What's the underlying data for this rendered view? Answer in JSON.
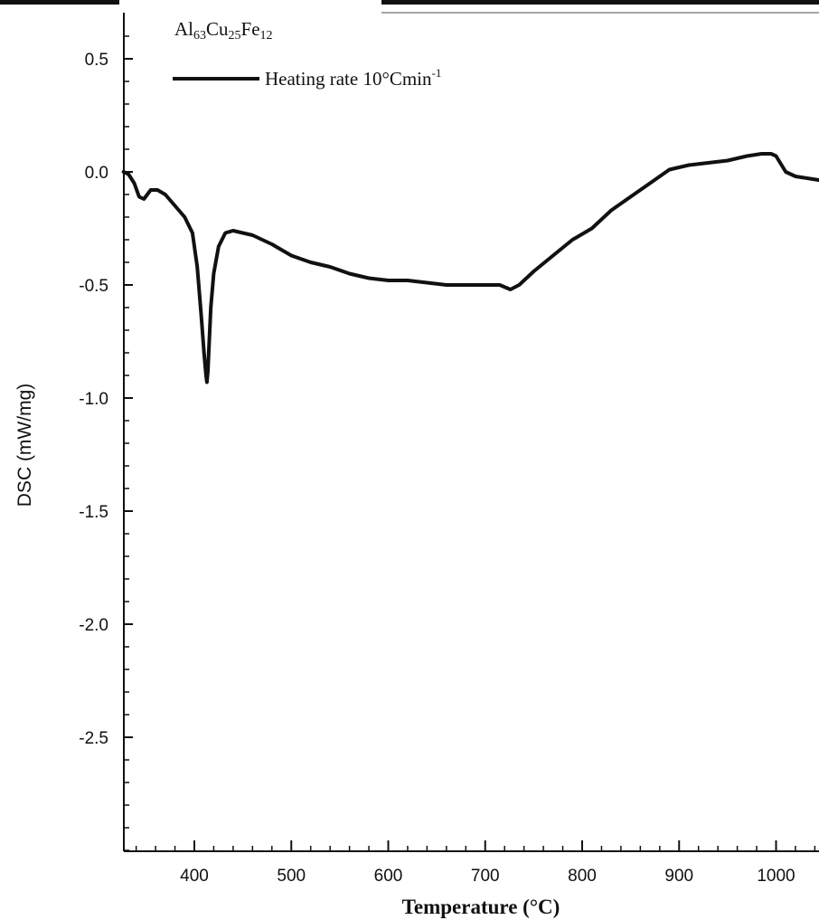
{
  "chart_data": {
    "type": "line",
    "title": "Al63Cu25Fe12",
    "title_parts": {
      "el1": "Al",
      "n1": "63",
      "el2": "Cu",
      "n2": "25",
      "el3": "Fe",
      "n3": "12"
    },
    "xlabel": "Temperature (°C)",
    "ylabel": "DSC (mW/mg)",
    "xlim": [
      325,
      1050
    ],
    "ylim": [
      -3.0,
      0.7
    ],
    "x_ticks": [
      400,
      500,
      600,
      700,
      800,
      900,
      1000
    ],
    "y_ticks": [
      0.5,
      0.0,
      -0.5,
      -1.0,
      -1.5,
      -2.0,
      -2.5
    ],
    "x_tick_labels": [
      "400",
      "500",
      "600",
      "700",
      "800",
      "900",
      "1000"
    ],
    "y_tick_labels": [
      "0.5",
      "0.0",
      "-0.5",
      "-1.0",
      "-1.5",
      "-2.0",
      "-2.5"
    ],
    "grid": false,
    "legend_placement": "top-left",
    "series": [
      {
        "name": "Heating rate 10°Cmin",
        "name_superscript": "-1",
        "color": "#111111",
        "x": [
          327,
          332,
          338,
          343,
          348,
          355,
          362,
          370,
          380,
          390,
          398,
          403,
          407,
          410,
          412,
          413,
          414,
          415,
          417,
          420,
          425,
          432,
          440,
          460,
          480,
          500,
          520,
          540,
          560,
          580,
          600,
          620,
          640,
          660,
          680,
          700,
          715,
          726,
          735,
          750,
          770,
          790,
          810,
          830,
          850,
          870,
          890,
          910,
          930,
          950,
          970,
          985,
          990,
          995,
          1000,
          1010,
          1020,
          1035,
          1050
        ],
        "y": [
          0.0,
          -0.01,
          -0.05,
          -0.11,
          -0.12,
          -0.08,
          -0.08,
          -0.1,
          -0.15,
          -0.2,
          -0.27,
          -0.42,
          -0.63,
          -0.8,
          -0.9,
          -0.93,
          -0.88,
          -0.78,
          -0.6,
          -0.45,
          -0.33,
          -0.27,
          -0.26,
          -0.28,
          -0.32,
          -0.37,
          -0.4,
          -0.42,
          -0.45,
          -0.47,
          -0.48,
          -0.48,
          -0.49,
          -0.5,
          -0.5,
          -0.5,
          -0.5,
          -0.52,
          -0.5,
          -0.44,
          -0.37,
          -0.3,
          -0.25,
          -0.17,
          -0.11,
          -0.05,
          0.01,
          0.03,
          0.04,
          0.05,
          0.07,
          0.08,
          0.08,
          0.08,
          0.07,
          0.0,
          -0.02,
          -0.03,
          -0.04
        ]
      }
    ]
  }
}
